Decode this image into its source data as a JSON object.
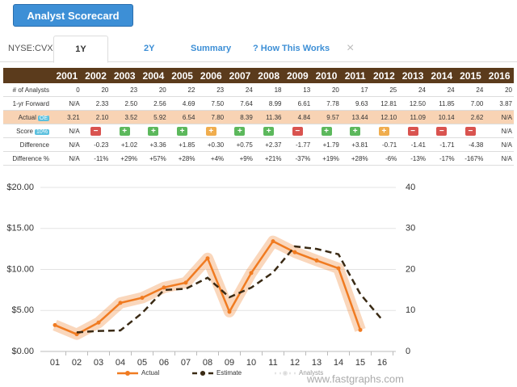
{
  "header": {
    "button": "Analyst Scorecard"
  },
  "tabs": {
    "exchange": "NYSE:CVX",
    "items": [
      "1Y",
      "2Y",
      "Summary",
      "? How This Works"
    ],
    "close": "×"
  },
  "table": {
    "years": [
      "2001",
      "2002",
      "2003",
      "2004",
      "2005",
      "2006",
      "2007",
      "2008",
      "2009",
      "2010",
      "2011",
      "2012",
      "2013",
      "2014",
      "2015",
      "2016"
    ],
    "rows": [
      {
        "label": "# of Analysts",
        "cells": [
          "0",
          "20",
          "23",
          "20",
          "22",
          "23",
          "24",
          "18",
          "13",
          "20",
          "17",
          "25",
          "24",
          "24",
          "24",
          "20"
        ]
      },
      {
        "label": "1-yr Forward",
        "cells": [
          "N/A",
          "2.33",
          "2.50",
          "2.56",
          "4.69",
          "7.50",
          "7.64",
          "8.99",
          "6.61",
          "7.78",
          "9.63",
          "12.81",
          "12.50",
          "11.85",
          "7.00",
          "3.87"
        ]
      },
      {
        "label": "Actual",
        "badge": "OE",
        "cells": [
          "3.21",
          "2.10",
          "3.52",
          "5.92",
          "6.54",
          "7.80",
          "8.39",
          "11.36",
          "4.84",
          "9.57",
          "13.44",
          "12.10",
          "11.09",
          "10.14",
          "2.62",
          "N/A"
        ]
      },
      {
        "label": "Score",
        "badge": "10%",
        "cells": [
          "N/A",
          "−",
          "+",
          "+",
          "+",
          "+",
          "+",
          "+",
          "−",
          "+",
          "+",
          "+",
          "−",
          "−",
          "−",
          "N/A"
        ],
        "colors": [
          null,
          "#d9534f",
          "#5cb85c",
          "#5cb85c",
          "#5cb85c",
          "#f0ad4e",
          "#5cb85c",
          "#5cb85c",
          "#d9534f",
          "#5cb85c",
          "#5cb85c",
          "#f0ad4e",
          "#d9534f",
          "#d9534f",
          "#d9534f",
          null
        ]
      },
      {
        "label": "Difference",
        "cells": [
          "N/A",
          "-0.23",
          "+1.02",
          "+3.36",
          "+1.85",
          "+0.30",
          "+0.75",
          "+2.37",
          "-1.77",
          "+1.79",
          "+3.81",
          "-0.71",
          "-1.41",
          "-1.71",
          "-4.38",
          "N/A"
        ]
      },
      {
        "label": "Difference %",
        "cells": [
          "N/A",
          "-11%",
          "+29%",
          "+57%",
          "+28%",
          "+4%",
          "+9%",
          "+21%",
          "-37%",
          "+19%",
          "+28%",
          "-6%",
          "-13%",
          "-17%",
          "-167%",
          "N/A"
        ]
      }
    ]
  },
  "chart_data": {
    "type": "line",
    "categories": [
      "01",
      "02",
      "03",
      "04",
      "05",
      "06",
      "07",
      "08",
      "09",
      "10",
      "11",
      "12",
      "13",
      "14",
      "15",
      "16"
    ],
    "series": [
      {
        "name": "Actual",
        "color": "#f07b21",
        "values": [
          3.21,
          2.1,
          3.52,
          5.92,
          6.54,
          7.8,
          8.39,
          11.36,
          4.84,
          9.57,
          13.44,
          12.1,
          11.09,
          10.14,
          2.62,
          null
        ]
      },
      {
        "name": "Estimate",
        "color": "#3a2a14",
        "dashed": true,
        "values": [
          null,
          2.33,
          2.5,
          2.56,
          4.69,
          7.5,
          7.64,
          8.99,
          6.61,
          7.78,
          9.63,
          12.81,
          12.5,
          11.85,
          7.0,
          3.87
        ]
      },
      {
        "name": "Analysts",
        "color": "#cccccc",
        "hidden": true
      }
    ],
    "ylim": [
      0,
      20
    ],
    "yticks": [
      {
        "value": 0,
        "label": "$0.00"
      },
      {
        "value": 5,
        "label": "$5.00"
      },
      {
        "value": 10,
        "label": "$10.00"
      },
      {
        "value": 15,
        "label": "$15.00"
      },
      {
        "value": 20,
        "label": "$20.00"
      }
    ],
    "y2lim": [
      0,
      40
    ],
    "y2ticks": [
      0,
      10,
      20,
      30,
      40
    ],
    "grid": true,
    "watermark": "www.fastgraphs.com"
  }
}
